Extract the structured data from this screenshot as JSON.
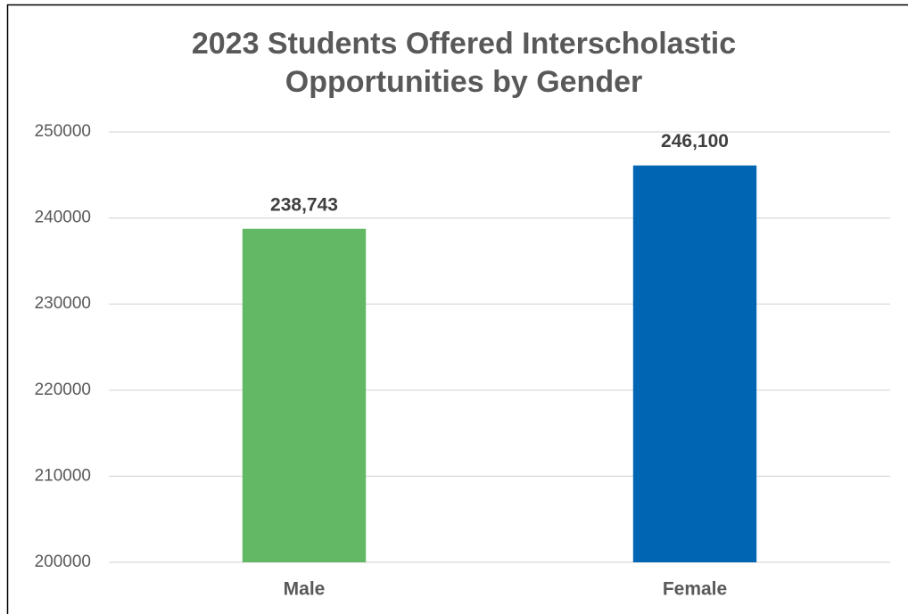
{
  "chart_data": {
    "type": "bar",
    "title": "2023 Students Offered Interscholastic Opportunities by Gender",
    "categories": [
      "Male",
      "Female"
    ],
    "values": [
      238743,
      246100
    ],
    "value_labels": [
      "238,743",
      "246,100"
    ],
    "colors": [
      "#63b866",
      "#0066b3"
    ],
    "ylim": [
      200000,
      250000
    ],
    "yticks": [
      200000,
      210000,
      220000,
      230000,
      240000,
      250000
    ],
    "grid": true
  }
}
